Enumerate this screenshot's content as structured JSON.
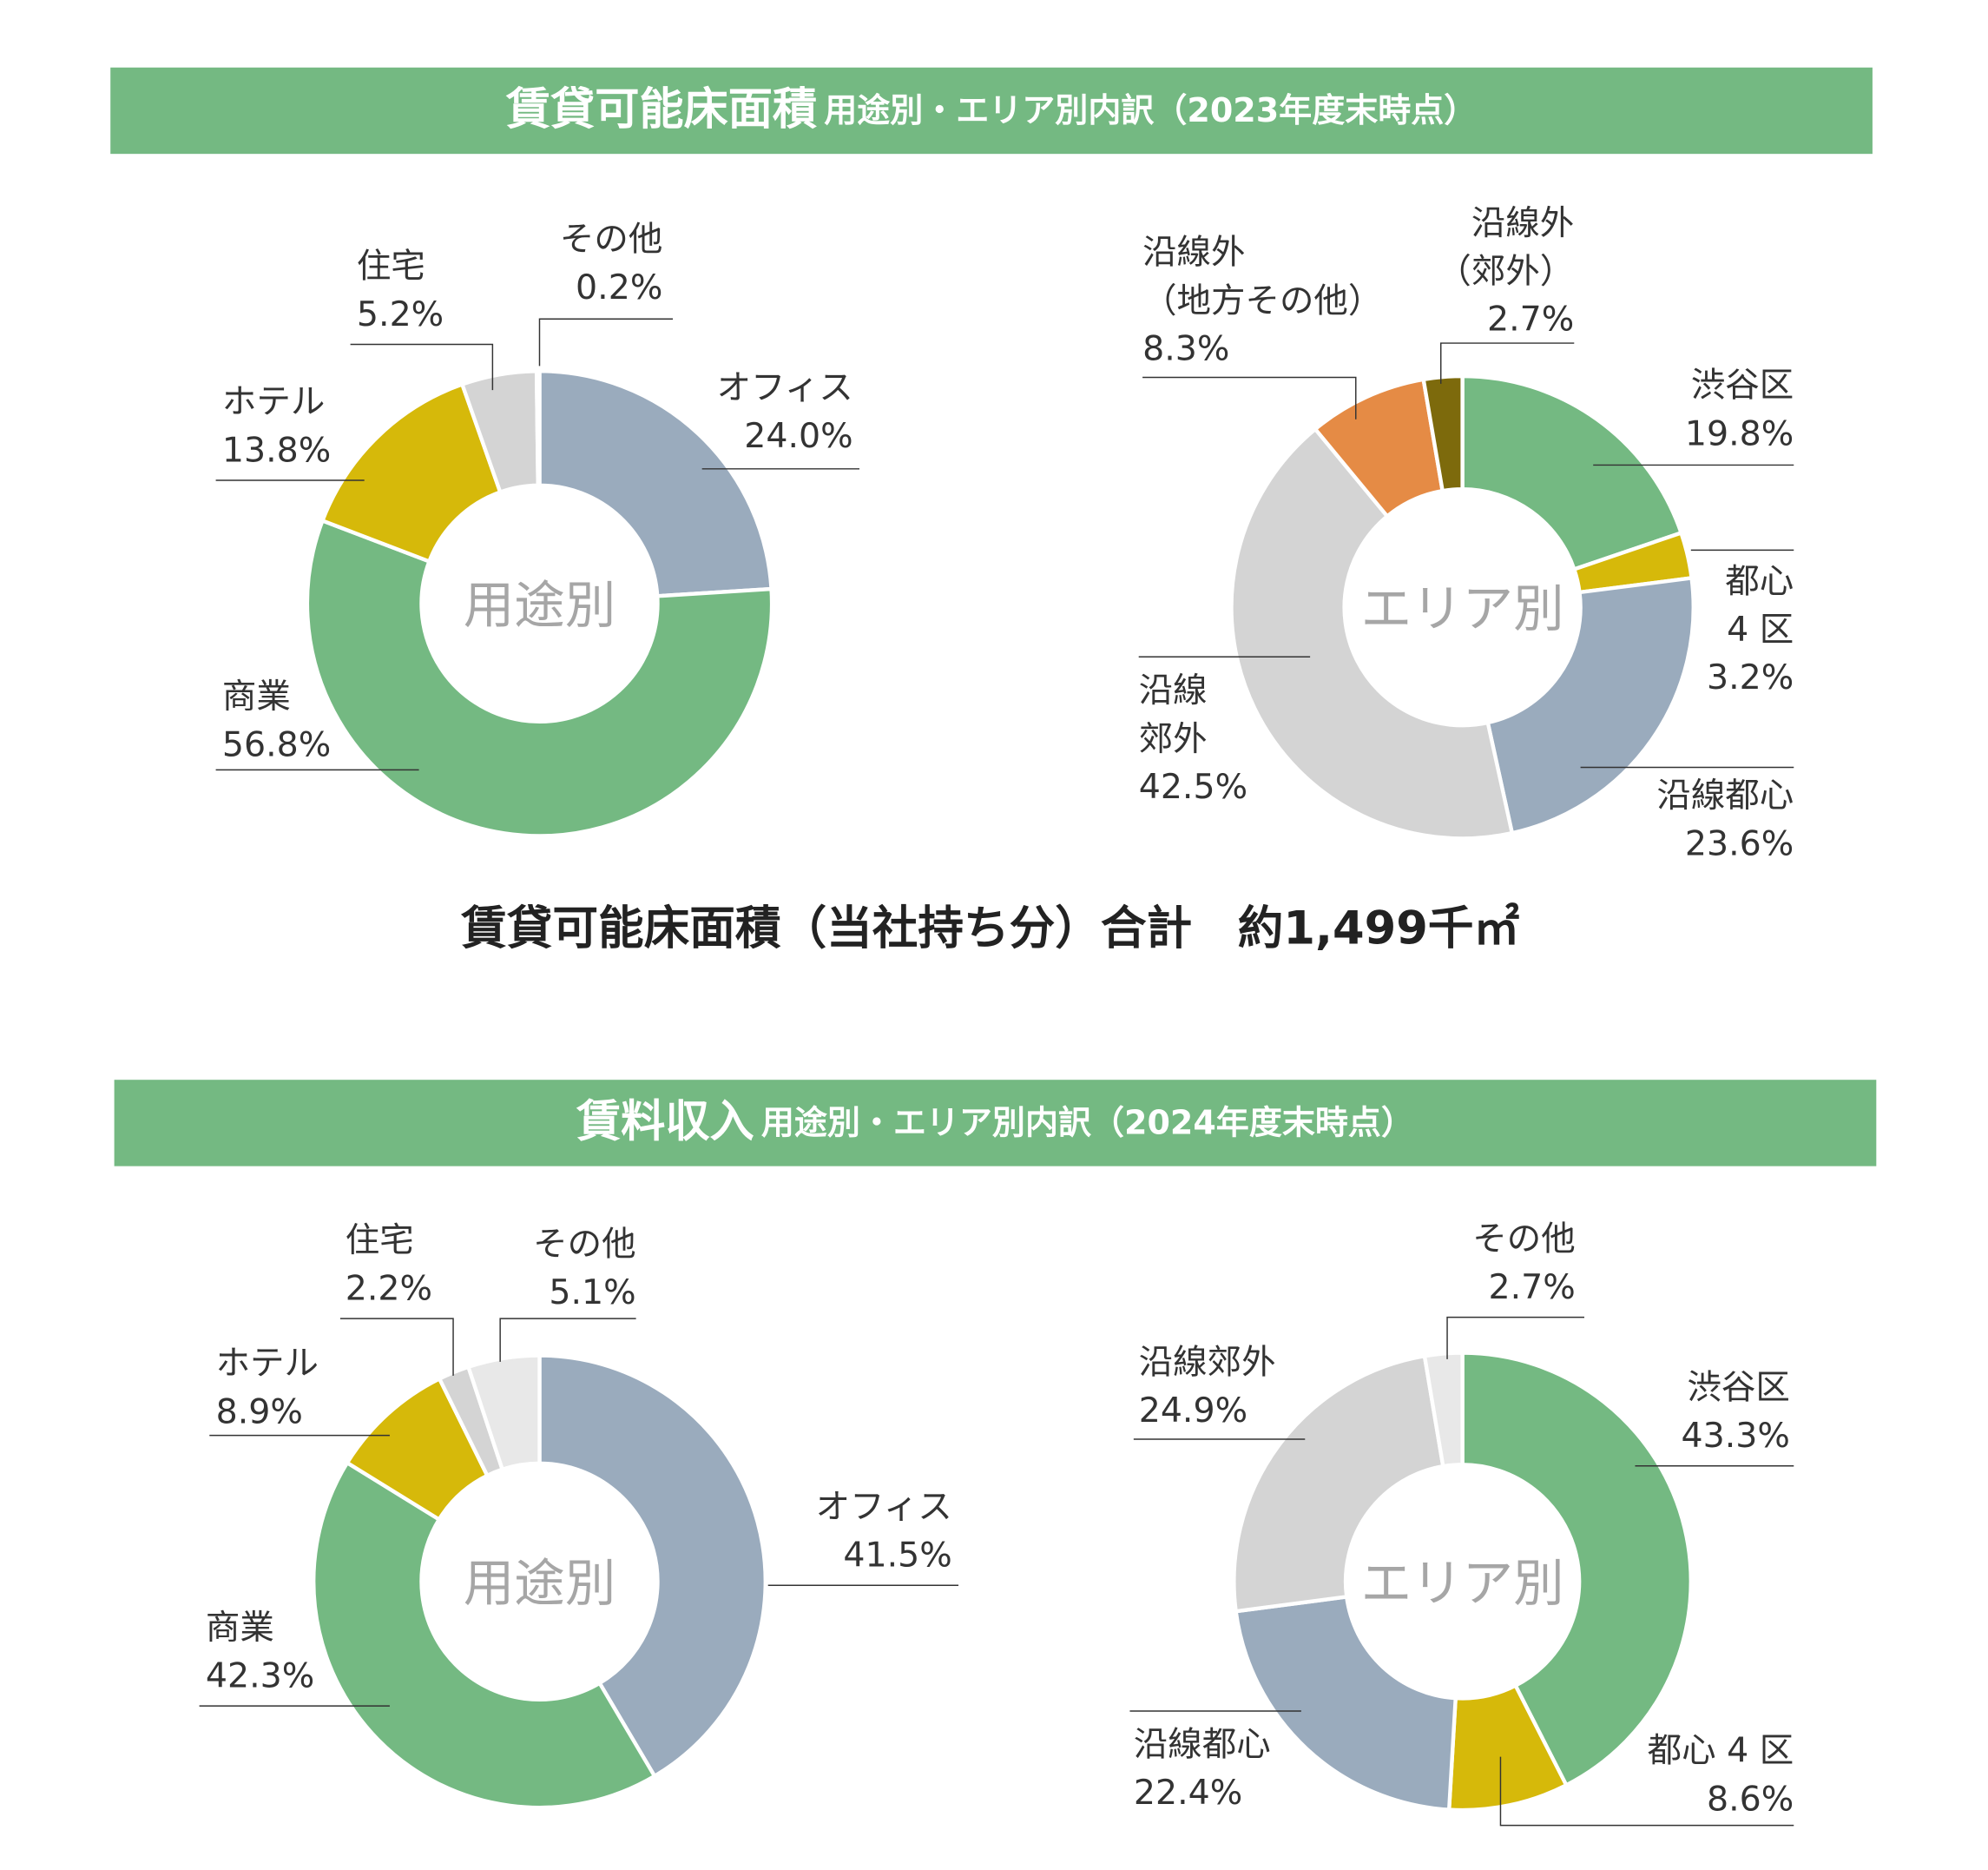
{
  "headers": [
    {
      "title": "賃貸可能床面積",
      "subtitle": "用途別・エリア別内訳（2023年度末時点）"
    },
    {
      "title": "賃料収入",
      "subtitle": "用途別・エリア別内訳（2024年度末時点）"
    }
  ],
  "total_note": "賃貸可能床面積（当社持ち分）合計　約1,499千㎡",
  "chart_data": [
    {
      "type": "pie",
      "center_label": "用途別",
      "categories": [
        "オフィス",
        "商業",
        "ホテル",
        "住宅",
        "その他"
      ],
      "values": [
        24.0,
        56.8,
        13.8,
        5.2,
        0.2
      ],
      "value_labels": [
        "24.0%",
        "56.8%",
        "13.8%",
        "5.2%",
        "0.2%"
      ],
      "colors": [
        "#9aabbd",
        "#74b982",
        "#d6b90a",
        "#d4d4d4",
        "#e8e8e8"
      ]
    },
    {
      "type": "pie",
      "center_label": "エリア別",
      "categories": [
        "渋谷区",
        "都心\n4 区",
        "沿線都心",
        "沿線\n郊外",
        "沿線外\n（地方その他）",
        "沿線外\n（郊外）"
      ],
      "values": [
        19.8,
        3.2,
        23.6,
        42.5,
        8.3,
        2.7
      ],
      "value_labels": [
        "19.8%",
        "3.2%",
        "23.6%",
        "42.5%",
        "8.3%",
        "2.7%"
      ],
      "colors": [
        "#74b982",
        "#d6b90a",
        "#9aabbd",
        "#d4d4d4",
        "#e58b45",
        "#7d6a0c"
      ]
    },
    {
      "type": "pie",
      "center_label": "用途別",
      "categories": [
        "オフィス",
        "商業",
        "ホテル",
        "住宅",
        "その他"
      ],
      "values": [
        41.5,
        42.3,
        8.9,
        2.2,
        5.1
      ],
      "value_labels": [
        "41.5%",
        "42.3%",
        "8.9%",
        "2.2%",
        "5.1%"
      ],
      "colors": [
        "#9aabbd",
        "#74b982",
        "#d6b90a",
        "#d4d4d4",
        "#e8e8e8"
      ]
    },
    {
      "type": "pie",
      "center_label": "エリア別",
      "categories": [
        "渋谷区",
        "都心 4 区",
        "沿線都心",
        "沿線郊外",
        "その他"
      ],
      "values": [
        43.3,
        8.6,
        22.4,
        24.9,
        2.7
      ],
      "value_labels": [
        "43.3%",
        "8.6%",
        "22.4%",
        "24.9%",
        "2.7%"
      ],
      "colors": [
        "#74b982",
        "#d6b90a",
        "#9aabbd",
        "#d4d4d4",
        "#e8e8e8"
      ]
    }
  ]
}
